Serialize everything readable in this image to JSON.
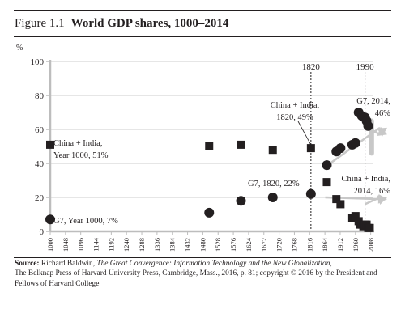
{
  "figure": {
    "number": "Figure 1.1",
    "title": "World GDP shares, 1000–2014"
  },
  "source": {
    "label": "Source:",
    "author": "Richard Baldwin,",
    "book": "The Great Convergence: Information Technology and the New Globalization,",
    "publisher": "The Belknap Press of Harvard University Press, Cambridge, Mass., 2016, p. 81; copyright © 2016 by the President and Fellows of Harvard College"
  },
  "chart_data": {
    "type": "scatter",
    "ylabel": "%",
    "ylim": [
      0,
      100
    ],
    "yticks": [
      0,
      20,
      40,
      60,
      80,
      100
    ],
    "xlim": [
      1000,
      2014
    ],
    "xticks": [
      1000,
      1048,
      1096,
      1144,
      1192,
      1240,
      1288,
      1336,
      1384,
      1432,
      1480,
      1528,
      1576,
      1624,
      1672,
      1720,
      1768,
      1816,
      1864,
      1912,
      1960,
      2008
    ],
    "grid": "horizontal",
    "colors": {
      "axis": "#bdbdbd",
      "marker": "#231f20",
      "arrow": "#c8c8c8",
      "grid": "#cccccc"
    },
    "reference_lines": [
      {
        "x": 1820,
        "label": "1820"
      },
      {
        "x": 1990,
        "label": "1990"
      }
    ],
    "series": [
      {
        "name": "China + India",
        "marker": "square",
        "points": [
          {
            "x": 1000,
            "y": 51
          },
          {
            "x": 1500,
            "y": 50
          },
          {
            "x": 1600,
            "y": 51
          },
          {
            "x": 1700,
            "y": 48
          },
          {
            "x": 1820,
            "y": 49
          },
          {
            "x": 1870,
            "y": 29
          },
          {
            "x": 1900,
            "y": 19
          },
          {
            "x": 1913,
            "y": 16
          },
          {
            "x": 1950,
            "y": 8
          },
          {
            "x": 1960,
            "y": 9
          },
          {
            "x": 1970,
            "y": 6
          },
          {
            "x": 1975,
            "y": 4
          },
          {
            "x": 1980,
            "y": 4
          },
          {
            "x": 1985,
            "y": 3
          },
          {
            "x": 1990,
            "y": 4
          },
          {
            "x": 1995,
            "y": 4
          },
          {
            "x": 2000,
            "y": 2
          },
          {
            "x": 2005,
            "y": 2
          }
        ]
      },
      {
        "name": "G7",
        "marker": "circle",
        "points": [
          {
            "x": 1000,
            "y": 7
          },
          {
            "x": 1500,
            "y": 11
          },
          {
            "x": 1600,
            "y": 18
          },
          {
            "x": 1700,
            "y": 20
          },
          {
            "x": 1820,
            "y": 22
          },
          {
            "x": 1870,
            "y": 39
          },
          {
            "x": 1900,
            "y": 47
          },
          {
            "x": 1913,
            "y": 49
          },
          {
            "x": 1950,
            "y": 51
          },
          {
            "x": 1960,
            "y": 52
          },
          {
            "x": 1970,
            "y": 70
          },
          {
            "x": 1980,
            "y": 68
          },
          {
            "x": 1990,
            "y": 67
          },
          {
            "x": 1995,
            "y": 65
          },
          {
            "x": 2000,
            "y": 62
          }
        ]
      }
    ],
    "arrows": [
      {
        "from": {
          "x": 1990,
          "y": 62
        },
        "to": {
          "x": 2014,
          "y": 57
        }
      },
      {
        "from": {
          "x": 1990,
          "y": 16
        },
        "to": {
          "x": 2014,
          "y": 20
        }
      },
      {
        "from": {
          "x": 1865,
          "y": 38
        },
        "to": {
          "x": 2014,
          "y": 61
        }
      },
      {
        "from": {
          "x": 1865,
          "y": 20
        },
        "to": {
          "x": 2014,
          "y": 19
        }
      }
    ],
    "annotations": [
      {
        "text": "China + India,",
        "at": {
          "x": 1000,
          "y": 51
        }
      },
      {
        "text": "Year 1000, 51%",
        "at": {
          "x": 1000,
          "y": 51
        }
      },
      {
        "text": "G7, Year 1000, 7%",
        "at": {
          "x": 1000,
          "y": 7
        }
      },
      {
        "text": "China + India,",
        "at": {
          "x": 1820,
          "y": 49
        }
      },
      {
        "text": "1820, 49%",
        "at": {
          "x": 1820,
          "y": 49
        }
      },
      {
        "text": "G7, 1820, 22%",
        "at": {
          "x": 1820,
          "y": 22
        }
      },
      {
        "text": "G7, 2014,",
        "at": {
          "x": 2014,
          "y": 46
        }
      },
      {
        "text": "46%",
        "at": {
          "x": 2014,
          "y": 46
        }
      },
      {
        "text": "China + India,",
        "at": {
          "x": 2014,
          "y": 16
        }
      },
      {
        "text": "2014, 16%",
        "at": {
          "x": 2014,
          "y": 16
        }
      }
    ]
  }
}
